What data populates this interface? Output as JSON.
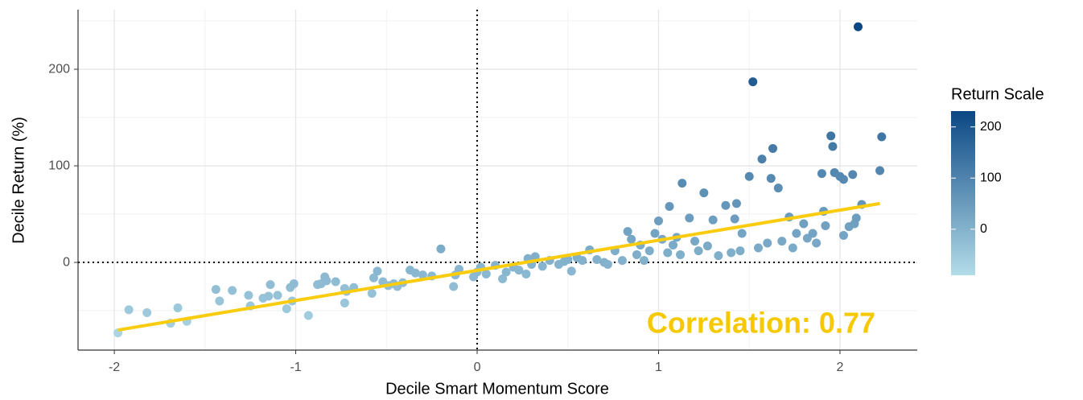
{
  "chart_data": {
    "type": "scatter",
    "x_label": "Decile Smart Momentum Score",
    "y_label": "Decile Return (%)",
    "annotation": "Correlation: 0.77",
    "annotation_color": "#f5c800",
    "xlim": [
      -2.2,
      2.426
    ],
    "ylim": [
      -90.8,
      261.7
    ],
    "xticks": [
      -2,
      -1,
      0,
      1,
      2
    ],
    "yticks": [
      0,
      100,
      200
    ],
    "minor_xticks": [
      -1.5,
      -0.5,
      0.5,
      1.5
    ],
    "minor_yticks": [
      -50,
      50,
      150,
      250
    ],
    "grid": true,
    "ref_lines": {
      "x": 0,
      "y": 0
    },
    "trend_line": {
      "x": [
        -1.98,
        2.22
      ],
      "values": [
        -70,
        61
      ],
      "color": "#f9cc0f"
    },
    "color_scale": {
      "title": "Return Scale",
      "low": "#b3dce9",
      "high": "#0b4784",
      "limits": [
        -90,
        231
      ],
      "ticks": [
        0,
        100,
        200
      ]
    },
    "x": [
      -1.98,
      -1.92,
      -1.82,
      -1.69,
      -1.65,
      -1.6,
      -1.44,
      -1.42,
      -1.35,
      -1.26,
      -1.25,
      -1.18,
      -1.15,
      -1.14,
      -1.1,
      -1.05,
      -1.03,
      -1.02,
      -1.01,
      -0.93,
      -0.88,
      -0.86,
      -0.83,
      -0.84,
      -0.78,
      -0.73,
      -0.73,
      -0.72,
      -0.68,
      -0.58,
      -0.57,
      -0.55,
      -0.52,
      -0.49,
      -0.46,
      -0.44,
      -0.41,
      -0.37,
      -0.34,
      -0.3,
      -0.25,
      -0.2,
      -0.13,
      -0.12,
      -0.1,
      -0.02,
      0.0,
      0.02,
      0.05,
      0.1,
      0.14,
      0.16,
      0.2,
      0.23,
      0.27,
      0.28,
      0.3,
      0.32,
      0.36,
      0.4,
      0.45,
      0.48,
      0.5,
      0.52,
      0.55,
      0.58,
      0.62,
      0.66,
      0.7,
      0.72,
      0.76,
      0.8,
      0.83,
      0.85,
      0.88,
      0.9,
      0.92,
      0.95,
      0.98,
      1.0,
      1.02,
      1.05,
      1.08,
      1.1,
      1.12,
      1.13,
      1.06,
      1.17,
      1.2,
      1.22,
      1.25,
      1.27,
      1.3,
      1.33,
      1.37,
      1.4,
      1.42,
      1.43,
      1.46,
      1.45,
      1.5,
      1.52,
      1.55,
      1.57,
      1.6,
      1.62,
      1.63,
      1.66,
      1.68,
      1.72,
      1.74,
      1.76,
      1.8,
      1.82,
      1.85,
      1.87,
      1.9,
      1.91,
      1.95,
      1.96,
      1.97,
      2.0,
      2.02,
      2.05,
      2.07,
      2.1,
      2.08,
      2.09,
      2.12,
      2.02,
      2.22,
      2.23,
      1.92
    ],
    "values": [
      -73,
      -49,
      -52,
      -63,
      -47,
      -61,
      -28,
      -40,
      -29,
      -34,
      -45,
      -37,
      -35,
      -23,
      -34,
      -48,
      -26,
      -40,
      -22,
      -55,
      -23,
      -22,
      -19,
      -15,
      -20,
      -42,
      -27,
      -30,
      -26,
      -32,
      -16,
      -9,
      -20,
      -24,
      -22,
      -25,
      -21,
      -8,
      -11,
      -13,
      -14,
      14,
      -25,
      -13,
      -7,
      -15,
      -10,
      -5,
      -12,
      -3,
      -17,
      -10,
      -5,
      -8,
      -12,
      4,
      -2,
      6,
      -4,
      2,
      -2,
      1,
      3,
      -9,
      5,
      2,
      13,
      3,
      0,
      -2,
      12,
      2,
      32,
      24,
      8,
      18,
      2,
      12,
      30,
      43,
      24,
      10,
      18,
      26,
      8,
      82,
      58,
      46,
      22,
      12,
      72,
      17,
      44,
      7,
      59,
      10,
      45,
      61,
      30,
      12,
      89,
      187,
      15,
      107,
      20,
      87,
      118,
      77,
      22,
      47,
      15,
      30,
      40,
      25,
      30,
      20,
      92,
      53,
      131,
      120,
      93,
      89,
      86,
      37,
      91,
      244,
      40,
      46,
      60,
      28,
      95,
      130,
      38
    ]
  }
}
